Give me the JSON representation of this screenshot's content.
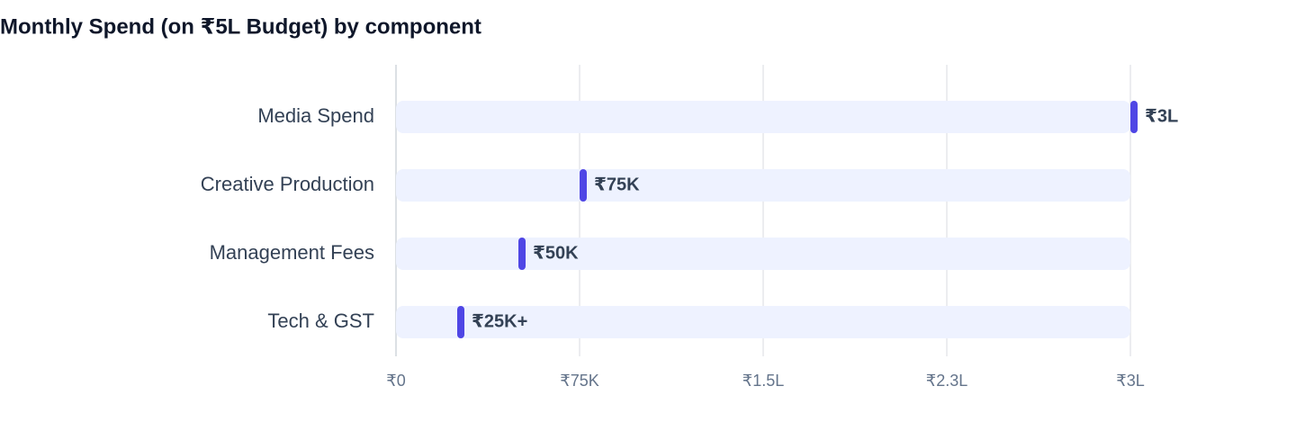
{
  "chart_data": {
    "type": "bar",
    "orientation": "horizontal",
    "title": "Monthly Spend (on ₹5L Budget) by component",
    "categories": [
      "Media Spend",
      "Creative Production",
      "Management Fees",
      "Tech & GST"
    ],
    "values": [
      300000,
      75000,
      50000,
      25000
    ],
    "value_labels": [
      "₹3L",
      "₹75K",
      "₹50K",
      "₹25K+"
    ],
    "color": "#4f46e5",
    "xlim": [
      0,
      300000
    ],
    "xticks": [
      {
        "value": 0,
        "label": "₹0"
      },
      {
        "value": 75000,
        "label": "₹75K"
      },
      {
        "value": 150000,
        "label": "₹1.5L"
      },
      {
        "value": 225000,
        "label": "₹2.3L"
      },
      {
        "value": 300000,
        "label": "₹3L"
      }
    ],
    "grid": true
  }
}
